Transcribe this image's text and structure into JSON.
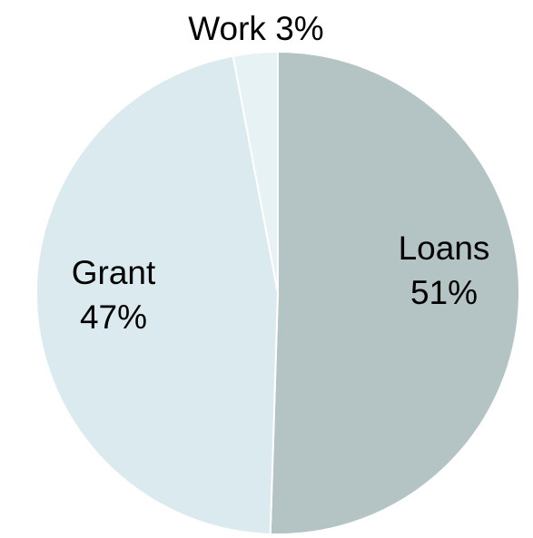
{
  "chart_data": {
    "type": "pie",
    "slices": [
      {
        "name": "Loans",
        "label": "Loans",
        "pct_label": "51%",
        "value": 51,
        "color": "#b4c3c4"
      },
      {
        "name": "Grant",
        "label": "Grant",
        "pct_label": "47%",
        "value": 47,
        "color": "#dbeaee"
      },
      {
        "name": "Work",
        "label": "Work",
        "pct_label": "3%",
        "value": 3,
        "color": "#e7f2f5"
      }
    ],
    "start": "top",
    "direction": "clockwise",
    "legend": "none"
  }
}
